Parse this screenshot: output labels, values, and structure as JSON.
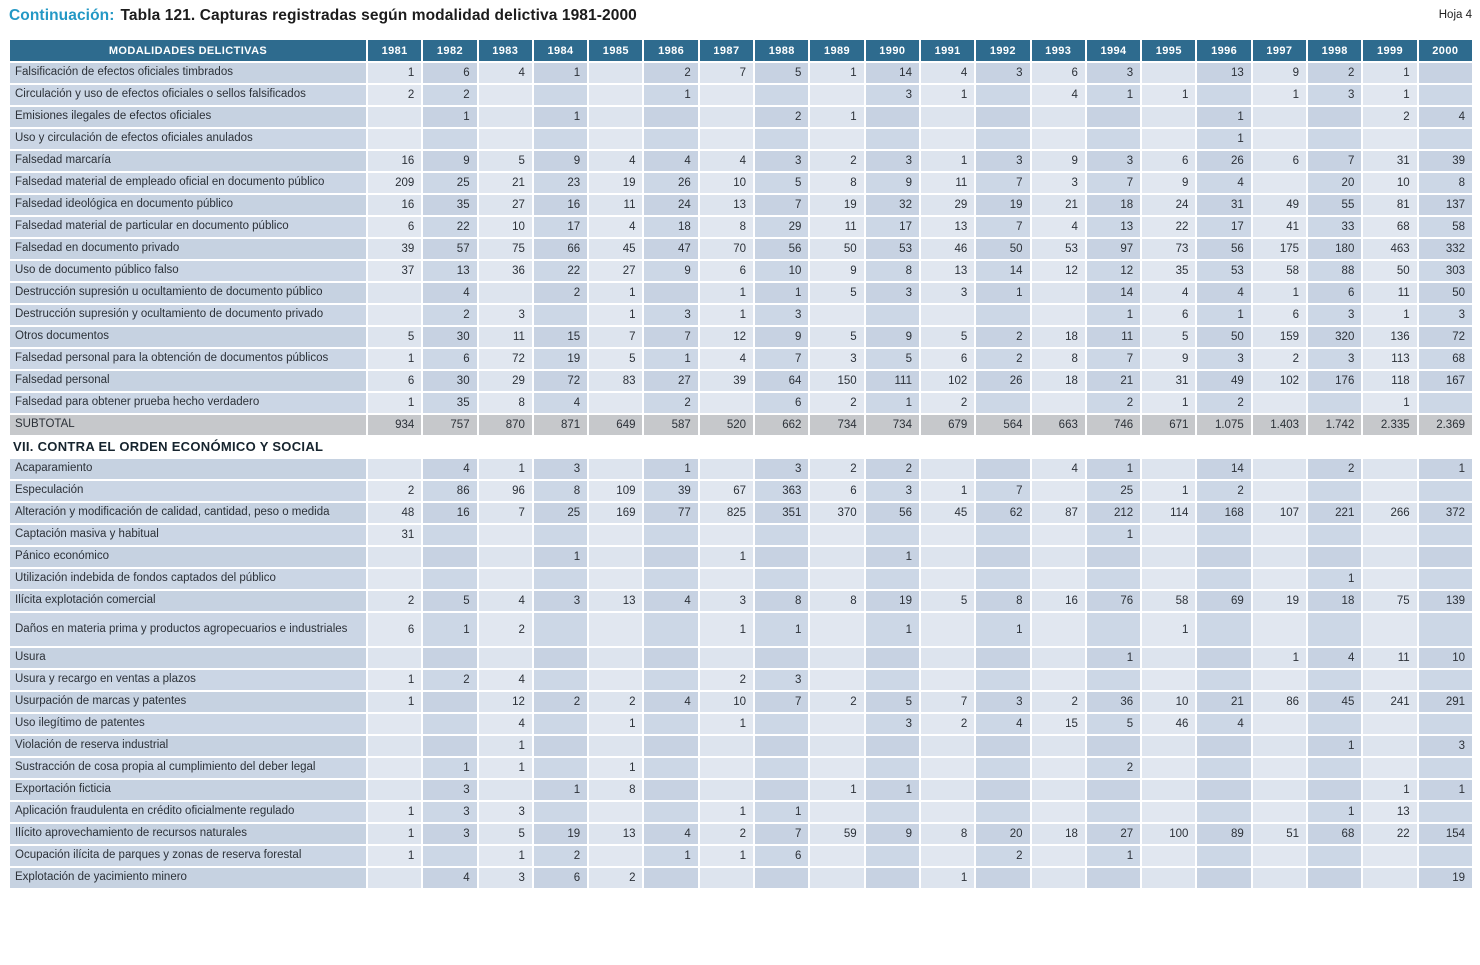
{
  "page": {
    "title_prefix": "Continuación:",
    "title_main": "Tabla 121.  Capturas registradas según modalidad delictiva 1981-2000",
    "sheet_label": "Hoja 4"
  },
  "table": {
    "header_label": "MODALIDADES DELICTIVAS",
    "years": [
      "1981",
      "1982",
      "1983",
      "1984",
      "1985",
      "1986",
      "1987",
      "1988",
      "1989",
      "1990",
      "1991",
      "1992",
      "1993",
      "1994",
      "1995",
      "1996",
      "1997",
      "1998",
      "1999",
      "2000"
    ],
    "rows": [
      {
        "type": "data",
        "label": "Falsificación de efectos oficiales timbrados",
        "values": [
          "1",
          "6",
          "4",
          "1",
          "",
          "2",
          "7",
          "5",
          "1",
          "14",
          "4",
          "3",
          "6",
          "3",
          "",
          "13",
          "9",
          "2",
          "1",
          ""
        ]
      },
      {
        "type": "data",
        "label": "Circulación y uso de efectos oficiales o sellos falsificados",
        "values": [
          "2",
          "2",
          "",
          "",
          "",
          "1",
          "",
          "",
          "",
          "3",
          "1",
          "",
          "4",
          "1",
          "1",
          "",
          "1",
          "3",
          "1",
          ""
        ]
      },
      {
        "type": "data",
        "label": "Emisiones ilegales de efectos oficiales",
        "values": [
          "",
          "1",
          "",
          "1",
          "",
          "",
          "",
          "2",
          "1",
          "",
          "",
          "",
          "",
          "",
          "",
          "1",
          "",
          "",
          "2",
          "4"
        ]
      },
      {
        "type": "data",
        "label": "Uso y circulación de efectos oficiales anulados",
        "values": [
          "",
          "",
          "",
          "",
          "",
          "",
          "",
          "",
          "",
          "",
          "",
          "",
          "",
          "",
          "",
          "1",
          "",
          "",
          "",
          ""
        ]
      },
      {
        "type": "data",
        "label": "Falsedad marcaría",
        "values": [
          "16",
          "9",
          "5",
          "9",
          "4",
          "4",
          "4",
          "3",
          "2",
          "3",
          "1",
          "3",
          "9",
          "3",
          "6",
          "26",
          "6",
          "7",
          "31",
          "39"
        ]
      },
      {
        "type": "data",
        "label": "Falsedad material de empleado oficial en documento público",
        "values": [
          "209",
          "25",
          "21",
          "23",
          "19",
          "26",
          "10",
          "5",
          "8",
          "9",
          "11",
          "7",
          "3",
          "7",
          "9",
          "4",
          "",
          "20",
          "10",
          "8"
        ]
      },
      {
        "type": "data",
        "label": "Falsedad ideológica en documento público",
        "values": [
          "16",
          "35",
          "27",
          "16",
          "11",
          "24",
          "13",
          "7",
          "19",
          "32",
          "29",
          "19",
          "21",
          "18",
          "24",
          "31",
          "49",
          "55",
          "81",
          "137"
        ]
      },
      {
        "type": "data",
        "label": "Falsedad material de particular en documento público",
        "values": [
          "6",
          "22",
          "10",
          "17",
          "4",
          "18",
          "8",
          "29",
          "11",
          "17",
          "13",
          "7",
          "4",
          "13",
          "22",
          "17",
          "41",
          "33",
          "68",
          "58"
        ]
      },
      {
        "type": "data",
        "label": "Falsedad en documento privado",
        "values": [
          "39",
          "57",
          "75",
          "66",
          "45",
          "47",
          "70",
          "56",
          "50",
          "53",
          "46",
          "50",
          "53",
          "97",
          "73",
          "56",
          "175",
          "180",
          "463",
          "332"
        ]
      },
      {
        "type": "data",
        "label": "Uso de documento público falso",
        "values": [
          "37",
          "13",
          "36",
          "22",
          "27",
          "9",
          "6",
          "10",
          "9",
          "8",
          "13",
          "14",
          "12",
          "12",
          "35",
          "53",
          "58",
          "88",
          "50",
          "303"
        ]
      },
      {
        "type": "data",
        "label": "Destrucción supresión u ocultamiento de documento público",
        "values": [
          "",
          "4",
          "",
          "2",
          "1",
          "",
          "1",
          "1",
          "5",
          "3",
          "3",
          "1",
          "",
          "14",
          "4",
          "4",
          "1",
          "6",
          "11",
          "50"
        ]
      },
      {
        "type": "data",
        "label": "Destrucción supresión y ocultamiento de documento privado",
        "values": [
          "",
          "2",
          "3",
          "",
          "1",
          "3",
          "1",
          "3",
          "",
          "",
          "",
          "",
          "",
          "1",
          "6",
          "1",
          "6",
          "3",
          "1",
          "3"
        ]
      },
      {
        "type": "data",
        "label": "Otros documentos",
        "values": [
          "5",
          "30",
          "11",
          "15",
          "7",
          "7",
          "12",
          "9",
          "5",
          "9",
          "5",
          "2",
          "18",
          "11",
          "5",
          "50",
          "159",
          "320",
          "136",
          "72"
        ]
      },
      {
        "type": "data",
        "label": "Falsedad personal para la obtención de documentos públicos",
        "values": [
          "1",
          "6",
          "72",
          "19",
          "5",
          "1",
          "4",
          "7",
          "3",
          "5",
          "6",
          "2",
          "8",
          "7",
          "9",
          "3",
          "2",
          "3",
          "113",
          "68"
        ]
      },
      {
        "type": "data",
        "label": "Falsedad personal",
        "values": [
          "6",
          "30",
          "29",
          "72",
          "83",
          "27",
          "39",
          "64",
          "150",
          "111",
          "102",
          "26",
          "18",
          "21",
          "31",
          "49",
          "102",
          "176",
          "118",
          "167"
        ]
      },
      {
        "type": "data",
        "label": "Falsedad para obtener prueba hecho verdadero",
        "values": [
          "1",
          "35",
          "8",
          "4",
          "",
          "2",
          "",
          "6",
          "2",
          "1",
          "2",
          "",
          "",
          "2",
          "1",
          "2",
          "",
          "",
          "1",
          ""
        ]
      },
      {
        "type": "subtotal",
        "label": "SUBTOTAL",
        "values": [
          "934",
          "757",
          "870",
          "871",
          "649",
          "587",
          "520",
          "662",
          "734",
          "734",
          "679",
          "564",
          "663",
          "746",
          "671",
          "1.075",
          "1.403",
          "1.742",
          "2.335",
          "2.369"
        ]
      },
      {
        "type": "section",
        "label": "VII. CONTRA EL ORDEN ECONÓMICO Y SOCIAL"
      },
      {
        "type": "data",
        "label": "Acaparamiento",
        "values": [
          "",
          "4",
          "1",
          "3",
          "",
          "1",
          "",
          "3",
          "2",
          "2",
          "",
          "",
          "4",
          "1",
          "",
          "14",
          "",
          "2",
          "",
          "1"
        ]
      },
      {
        "type": "data",
        "label": "Especulación",
        "values": [
          "2",
          "86",
          "96",
          "8",
          "109",
          "39",
          "67",
          "363",
          "6",
          "3",
          "1",
          "7",
          "",
          "25",
          "1",
          "2",
          "",
          "",
          "",
          ""
        ]
      },
      {
        "type": "data",
        "label": "Alteración y modificación de calidad, cantidad, peso o medida",
        "values": [
          "48",
          "16",
          "7",
          "25",
          "169",
          "77",
          "825",
          "351",
          "370",
          "56",
          "45",
          "62",
          "87",
          "212",
          "114",
          "168",
          "107",
          "221",
          "266",
          "372"
        ]
      },
      {
        "type": "data",
        "label": "Captación  masiva y habitual",
        "values": [
          "31",
          "",
          "",
          "",
          "",
          "",
          "",
          "",
          "",
          "",
          "",
          "",
          "",
          "1",
          "",
          "",
          "",
          "",
          "",
          ""
        ]
      },
      {
        "type": "data",
        "label": "Pánico económico",
        "values": [
          "",
          "",
          "",
          "1",
          "",
          "",
          "1",
          "",
          "",
          "1",
          "",
          "",
          "",
          "",
          "",
          "",
          "",
          "",
          "",
          ""
        ]
      },
      {
        "type": "data",
        "label": "Utilización indebida de fondos captados del público",
        "values": [
          "",
          "",
          "",
          "",
          "",
          "",
          "",
          "",
          "",
          "",
          "",
          "",
          "",
          "",
          "",
          "",
          "",
          "1",
          "",
          ""
        ]
      },
      {
        "type": "data",
        "label": "Ilícita explotación comercial",
        "values": [
          "2",
          "5",
          "4",
          "3",
          "13",
          "4",
          "3",
          "8",
          "8",
          "19",
          "5",
          "8",
          "16",
          "76",
          "58",
          "69",
          "19",
          "18",
          "75",
          "139"
        ]
      },
      {
        "type": "data",
        "tall": true,
        "label": "Daños en materia prima y productos agropecuarios e industriales",
        "values": [
          "6",
          "1",
          "2",
          "",
          "",
          "",
          "1",
          "1",
          "",
          "1",
          "",
          "1",
          "",
          "",
          "1",
          "",
          "",
          "",
          "",
          ""
        ]
      },
      {
        "type": "data",
        "label": "Usura",
        "values": [
          "",
          "",
          "",
          "",
          "",
          "",
          "",
          "",
          "",
          "",
          "",
          "",
          "",
          "1",
          "",
          "",
          "1",
          "4",
          "11",
          "10"
        ]
      },
      {
        "type": "data",
        "label": "Usura y recargo en ventas a plazos",
        "values": [
          "1",
          "2",
          "4",
          "",
          "",
          "",
          "2",
          "3",
          "",
          "",
          "",
          "",
          "",
          "",
          "",
          "",
          "",
          "",
          "",
          ""
        ]
      },
      {
        "type": "data",
        "label": "Usurpación de marcas y patentes",
        "values": [
          "1",
          "",
          "12",
          "2",
          "2",
          "4",
          "10",
          "7",
          "2",
          "5",
          "7",
          "3",
          "2",
          "36",
          "10",
          "21",
          "86",
          "45",
          "241",
          "291"
        ]
      },
      {
        "type": "data",
        "label": "Uso ilegítimo de patentes",
        "values": [
          "",
          "",
          "4",
          "",
          "1",
          "",
          "1",
          "",
          "",
          "3",
          "2",
          "4",
          "15",
          "5",
          "46",
          "4",
          "",
          "",
          "",
          ""
        ]
      },
      {
        "type": "data",
        "label": "Violación de reserva industrial",
        "values": [
          "",
          "",
          "1",
          "",
          "",
          "",
          "",
          "",
          "",
          "",
          "",
          "",
          "",
          "",
          "",
          "",
          "",
          "1",
          "",
          "3"
        ]
      },
      {
        "type": "data",
        "label": "Sustracción de cosa propia al cumplimiento del deber legal",
        "values": [
          "",
          "1",
          "1",
          "",
          "1",
          "",
          "",
          "",
          "",
          "",
          "",
          "",
          "",
          "2",
          "",
          "",
          "",
          "",
          "",
          ""
        ]
      },
      {
        "type": "data",
        "label": "Exportación ficticia",
        "values": [
          "",
          "3",
          "",
          "1",
          "8",
          "",
          "",
          "",
          "1",
          "1",
          "",
          "",
          "",
          "",
          "",
          "",
          "",
          "",
          "1",
          "1"
        ]
      },
      {
        "type": "data",
        "label": "Aplicación fraudulenta en crédito oficialmente regulado",
        "values": [
          "1",
          "3",
          "3",
          "",
          "",
          "",
          "1",
          "1",
          "",
          "",
          "",
          "",
          "",
          "",
          "",
          "",
          "",
          "1",
          "13",
          ""
        ]
      },
      {
        "type": "data",
        "label": "Ilícito aprovechamiento de recursos naturales",
        "values": [
          "1",
          "3",
          "5",
          "19",
          "13",
          "4",
          "2",
          "7",
          "59",
          "9",
          "8",
          "20",
          "18",
          "27",
          "100",
          "89",
          "51",
          "68",
          "22",
          "154"
        ]
      },
      {
        "type": "data",
        "label": "Ocupación ilícita de parques y zonas de reserva forestal",
        "values": [
          "1",
          "",
          "1",
          "2",
          "",
          "1",
          "1",
          "6",
          "",
          "",
          "",
          "2",
          "",
          "1",
          "",
          "",
          "",
          "",
          "",
          ""
        ]
      },
      {
        "type": "data",
        "label": "Explotación de yacimiento minero",
        "values": [
          "",
          "4",
          "3",
          "6",
          "2",
          "",
          "",
          "",
          "",
          "",
          "1",
          "",
          "",
          "",
          "",
          "",
          "",
          "",
          "",
          "19"
        ]
      }
    ]
  }
}
